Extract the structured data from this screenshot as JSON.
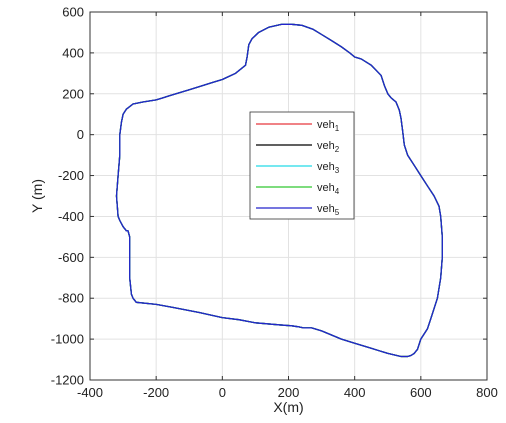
{
  "chart_data": {
    "type": "line",
    "xlabel": "X(m)",
    "ylabel": "Y (m)",
    "xlim": [
      -400,
      800
    ],
    "ylim": [
      -1200,
      600
    ],
    "xticks": [
      -400,
      -200,
      0,
      200,
      400,
      600,
      800
    ],
    "yticks": [
      -1200,
      -1000,
      -800,
      -600,
      -400,
      -200,
      0,
      200,
      400,
      600
    ],
    "grid": true,
    "legend_position": "center",
    "series": [
      {
        "name": "veh",
        "sub": "1",
        "color": "#e6383f"
      },
      {
        "name": "veh",
        "sub": "2",
        "color": "#000000"
      },
      {
        "name": "veh",
        "sub": "3",
        "color": "#23d9e6"
      },
      {
        "name": "veh",
        "sub": "4",
        "color": "#32c832"
      },
      {
        "name": "veh",
        "sub": "5",
        "color": "#2323cc"
      }
    ],
    "path": {
      "x": [
        0,
        40,
        70,
        75,
        80,
        90,
        110,
        140,
        180,
        210,
        240,
        275,
        300,
        330,
        360,
        385,
        400,
        420,
        450,
        480,
        490,
        500,
        510,
        525,
        535,
        540,
        545,
        550,
        560,
        580,
        600,
        620,
        640,
        655,
        660,
        665,
        665,
        660,
        650,
        640,
        630,
        620,
        600,
        590,
        580,
        570,
        560,
        540,
        500,
        450,
        400,
        360,
        330,
        300,
        270,
        245,
        230,
        210,
        170,
        100,
        50,
        0,
        -70,
        -150,
        -200,
        -260,
        -270,
        -275,
        -280,
        -280,
        -280,
        -285,
        -290,
        -300,
        -310,
        -315,
        -320,
        -315,
        -310,
        -310,
        -305,
        -300,
        -290,
        -270,
        -240,
        -200,
        -180,
        -160,
        -140,
        -100,
        -60,
        -30,
        0
      ],
      "y": [
        270,
        300,
        340,
        380,
        440,
        470,
        500,
        525,
        540,
        540,
        535,
        515,
        490,
        460,
        430,
        400,
        380,
        370,
        340,
        290,
        240,
        200,
        180,
        160,
        120,
        80,
        20,
        -50,
        -100,
        -150,
        -200,
        -250,
        -300,
        -350,
        -400,
        -500,
        -600,
        -700,
        -800,
        -850,
        -900,
        -950,
        -1000,
        -1050,
        -1070,
        -1080,
        -1085,
        -1085,
        -1070,
        -1045,
        -1020,
        -1000,
        -980,
        -960,
        -945,
        -945,
        -940,
        -935,
        -930,
        -920,
        -905,
        -895,
        -870,
        -845,
        -830,
        -820,
        -800,
        -780,
        -700,
        -600,
        -500,
        -470,
        -470,
        -450,
        -420,
        -400,
        -300,
        -200,
        -100,
        0,
        60,
        100,
        125,
        150,
        160,
        170,
        180,
        190,
        200,
        220,
        240,
        255,
        270
      ]
    }
  }
}
